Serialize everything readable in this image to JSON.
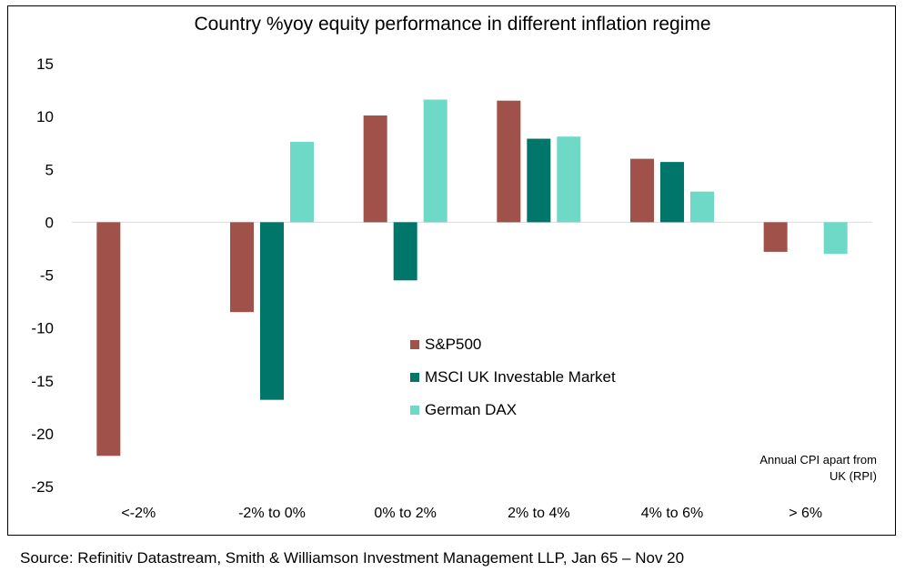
{
  "chart_data": {
    "type": "bar",
    "title": "Country %yoy equity performance in different inflation regime",
    "categories": [
      "<-2%",
      "-2% to 0%",
      "0% to 2%",
      "2% to 4%",
      "4% to 6%",
      "> 6%"
    ],
    "series": [
      {
        "name": "S&P500",
        "color": "#a0524a",
        "values": [
          -22.1,
          -8.5,
          10.1,
          11.5,
          6.0,
          -2.8
        ]
      },
      {
        "name": "MSCI UK Investable Market",
        "color": "#00766b",
        "values": [
          null,
          -16.8,
          -5.5,
          7.9,
          5.7,
          null
        ]
      },
      {
        "name": "German DAX",
        "color": "#6fd9c8",
        "values": [
          null,
          7.6,
          11.6,
          8.1,
          2.9,
          -3.0
        ]
      }
    ],
    "ylim": [
      -25,
      15
    ],
    "yticks": [
      15,
      10,
      5,
      0,
      -5,
      -10,
      -15,
      -20,
      -25
    ],
    "xlabel": "",
    "ylabel": "",
    "legend": "center",
    "grid": false,
    "note": [
      "Annual CPI apart from",
      "UK (RPI)"
    ]
  },
  "source": "Source: Refinitiv Datastream, Smith & Williamson Investment Management LLP, Jan 65 – Nov 20"
}
